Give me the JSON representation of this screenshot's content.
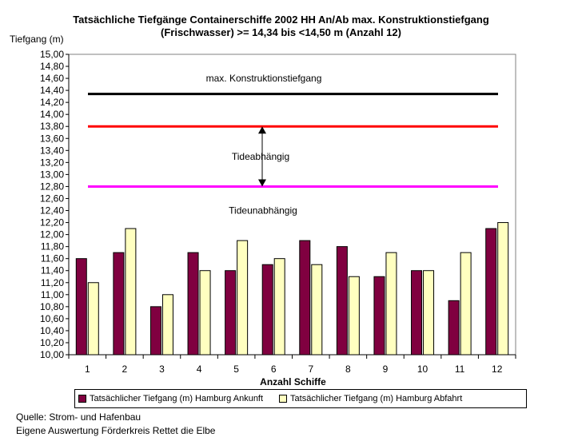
{
  "chart_data": {
    "type": "bar",
    "title": "Tatsächliche Tiefgänge Containerschiffe 2002 HH An/Ab max. Konstruktionstiefgang",
    "subtitle": "(Frischwasser) >= 14,34 bis <14,50 m (Anzahl 12)",
    "ylabel": "Tiefgang (m)",
    "xlabel": "Anzahl Schiffe",
    "ylim": [
      10.0,
      15.0
    ],
    "ytick_step": 0.2,
    "yticks": [
      "10,00",
      "10,20",
      "10,40",
      "10,60",
      "10,80",
      "11,00",
      "11,20",
      "11,40",
      "11,60",
      "11,80",
      "12,00",
      "12,20",
      "12,40",
      "12,60",
      "12,80",
      "13,00",
      "13,20",
      "13,40",
      "13,60",
      "13,80",
      "14,00",
      "14,20",
      "14,40",
      "14,60",
      "14,80",
      "15,00"
    ],
    "categories": [
      "1",
      "2",
      "3",
      "4",
      "5",
      "6",
      "7",
      "8",
      "9",
      "10",
      "11",
      "12"
    ],
    "series": [
      {
        "name": "Tatsächlicher Tiefgang (m) Hamburg Ankunft",
        "color": "#800040",
        "values": [
          11.6,
          11.7,
          10.8,
          11.7,
          11.4,
          11.5,
          11.9,
          11.8,
          11.3,
          11.4,
          10.9,
          12.1
        ]
      },
      {
        "name": "Tatsächlicher Tiefgang (m) Hamburg Abfahrt",
        "color": "#ffffc0",
        "values": [
          11.2,
          12.1,
          11.0,
          11.4,
          11.9,
          11.6,
          11.5,
          11.3,
          11.7,
          11.4,
          11.7,
          12.2
        ]
      }
    ],
    "reference_lines": [
      {
        "value": 14.34,
        "color": "#000000"
      },
      {
        "value": 13.8,
        "color": "#ff0000"
      },
      {
        "value": 12.8,
        "color": "#ff00ff"
      }
    ],
    "annotations": [
      {
        "text": "max. Konstruktionstiefgang",
        "y": 14.6
      },
      {
        "text": "Tideabhängig",
        "y": 13.3
      },
      {
        "text": "Tideunabhängig",
        "y": 12.4
      }
    ],
    "arrow": {
      "from": 13.8,
      "to": 12.8
    },
    "plot_background": "#ffffff",
    "grid": false,
    "legend_position": "bottom"
  },
  "source": {
    "line1": "Quelle: Strom- und Hafenbau",
    "line2": "Eigene Auswertung Förderkreis Rettet die Elbe"
  }
}
